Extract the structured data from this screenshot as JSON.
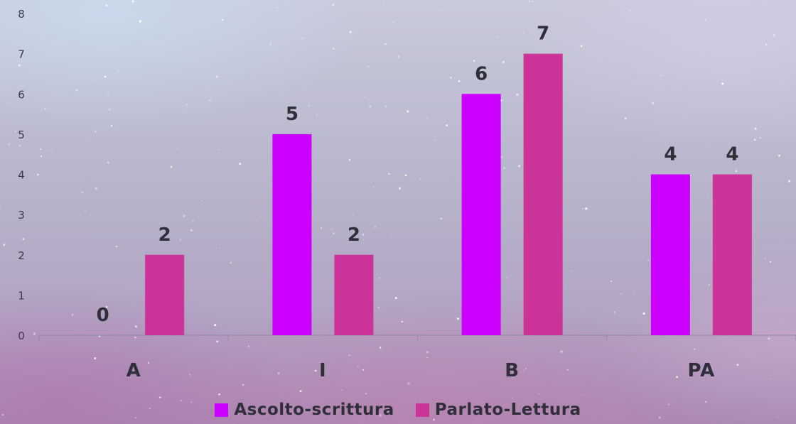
{
  "chart_data": {
    "type": "bar",
    "categories": [
      "A",
      "I",
      "B",
      "PA"
    ],
    "series": [
      {
        "name": "Ascolto-scrittura",
        "values": [
          0,
          5,
          6,
          4
        ],
        "color": "#cc00ff"
      },
      {
        "name": "Parlato-Lettura",
        "values": [
          2,
          2,
          7,
          4
        ],
        "color": "#cc3399"
      }
    ],
    "ylim": [
      0,
      8
    ],
    "yticks": [
      "0",
      "1",
      "2",
      "3",
      "4",
      "5",
      "6",
      "7",
      "8"
    ],
    "legend_position": "bottom",
    "data_labels": true,
    "grid": false
  }
}
